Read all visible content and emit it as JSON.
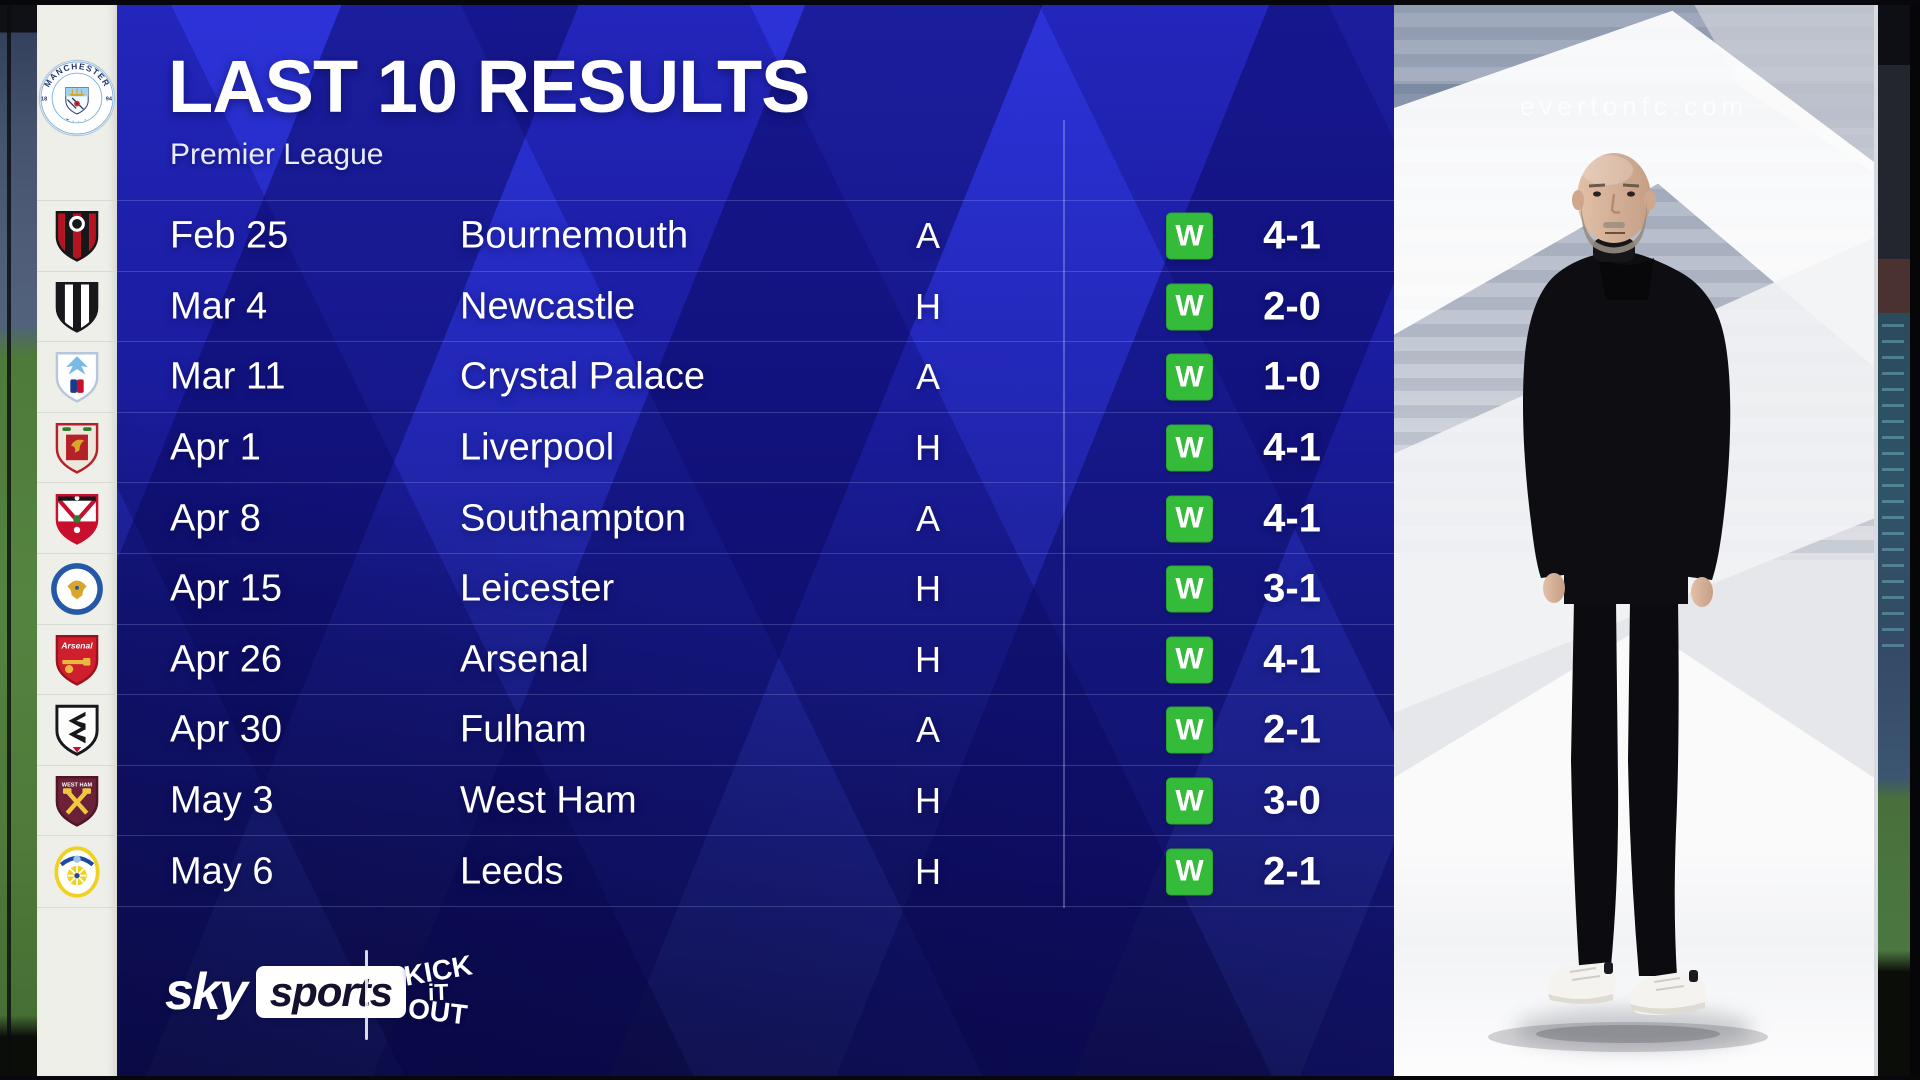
{
  "header": {
    "title": "LAST 10 RESULTS",
    "subtitle": "Premier League"
  },
  "club": {
    "name": "Manchester City",
    "badge_top": "MANCHESTER",
    "badge_bottom": "CITY",
    "badge_year": "1894"
  },
  "results": [
    {
      "team_id": "bournemouth",
      "date": "Feb 25",
      "opponent": "Bournemouth",
      "venue": "A",
      "outcome": "W",
      "score": "4-1"
    },
    {
      "team_id": "newcastle",
      "date": "Mar 4",
      "opponent": "Newcastle",
      "venue": "H",
      "outcome": "W",
      "score": "2-0"
    },
    {
      "team_id": "crystal-palace",
      "date": "Mar 11",
      "opponent": "Crystal Palace",
      "venue": "A",
      "outcome": "W",
      "score": "1-0"
    },
    {
      "team_id": "liverpool",
      "date": "Apr 1",
      "opponent": "Liverpool",
      "venue": "H",
      "outcome": "W",
      "score": "4-1"
    },
    {
      "team_id": "southampton",
      "date": "Apr 8",
      "opponent": "Southampton",
      "venue": "A",
      "outcome": "W",
      "score": "4-1"
    },
    {
      "team_id": "leicester",
      "date": "Apr 15",
      "opponent": "Leicester",
      "venue": "H",
      "outcome": "W",
      "score": "3-1"
    },
    {
      "team_id": "arsenal",
      "date": "Apr 26",
      "opponent": "Arsenal",
      "venue": "H",
      "outcome": "W",
      "score": "4-1"
    },
    {
      "team_id": "fulham",
      "date": "Apr 30",
      "opponent": "Fulham",
      "venue": "A",
      "outcome": "W",
      "score": "2-1"
    },
    {
      "team_id": "west-ham",
      "date": "May 3",
      "opponent": "West Ham",
      "venue": "H",
      "outcome": "W",
      "score": "3-0"
    },
    {
      "team_id": "leeds",
      "date": "May 6",
      "opponent": "Leeds",
      "venue": "H",
      "outcome": "W",
      "score": "2-1"
    }
  ],
  "result_badge": {
    "win_label": "W",
    "win_color": "#35bb3a",
    "win_border": "#2aa52f"
  },
  "badges": {
    "bournemouth": {
      "label": "AFC Bournemouth",
      "style": "stripes",
      "colors": [
        "#b51322",
        "#17171a"
      ],
      "border": "#17171a"
    },
    "newcastle": {
      "label": "Newcastle United",
      "style": "stripes",
      "colors": [
        "#17171c",
        "#ffffff"
      ],
      "border": "#17171c"
    },
    "crystal-palace": {
      "label": "Crystal Palace",
      "style": "palace",
      "colors": [
        "#ffffff",
        "#7ab8e6",
        "#1b3a8c",
        "#c8102e"
      ],
      "border": "#b6c6dc"
    },
    "liverpool": {
      "label": "Liverpool",
      "style": "liverpool",
      "colors": [
        "#ece7db",
        "#b4212a",
        "#d9a62a",
        "#2e7d32"
      ],
      "border": "#b4212a"
    },
    "southampton": {
      "label": "Southampton",
      "style": "southampton",
      "colors": [
        "#ffffff",
        "#c8102e",
        "#2e7d32",
        "#17171a"
      ],
      "border": "#c8102e"
    },
    "leicester": {
      "label": "Leicester City",
      "style": "leicester",
      "colors": [
        "#2558a7",
        "#ffffff",
        "#d9a62a"
      ],
      "border": "#2558a7"
    },
    "arsenal": {
      "label": "Arsenal",
      "style": "arsenal",
      "colors": [
        "#cf1f2c",
        "#e8b93e",
        "#ffffff"
      ],
      "border": "#9a1220",
      "text": "Arsenal"
    },
    "fulham": {
      "label": "Fulham",
      "style": "fulham",
      "colors": [
        "#fdfdfb",
        "#17171c",
        "#c8102e"
      ],
      "border": "#17171c"
    },
    "west-ham": {
      "label": "West Ham United",
      "style": "westham",
      "colors": [
        "#6b2138",
        "#efc83f",
        "#ffffff"
      ],
      "border": "#4f1628",
      "text": "WEST HAM"
    },
    "leeds": {
      "label": "Leeds United",
      "style": "leeds",
      "colors": [
        "#ffffff",
        "#f0d020",
        "#1d4a9e",
        "#9ec6e8"
      ],
      "border": "#f0d020"
    }
  },
  "footer": {
    "sky_word": "sky",
    "sports_word": "sports",
    "kick_it_out_lines": [
      "KICK",
      "iT",
      "OUT"
    ]
  },
  "background": {
    "stadium_text": "evertonfc.com"
  },
  "colors": {
    "panel_top": "#2a2ed6",
    "panel_bottom": "#121252",
    "badge_column_bg": "#efefea",
    "text": "#ffffff"
  }
}
